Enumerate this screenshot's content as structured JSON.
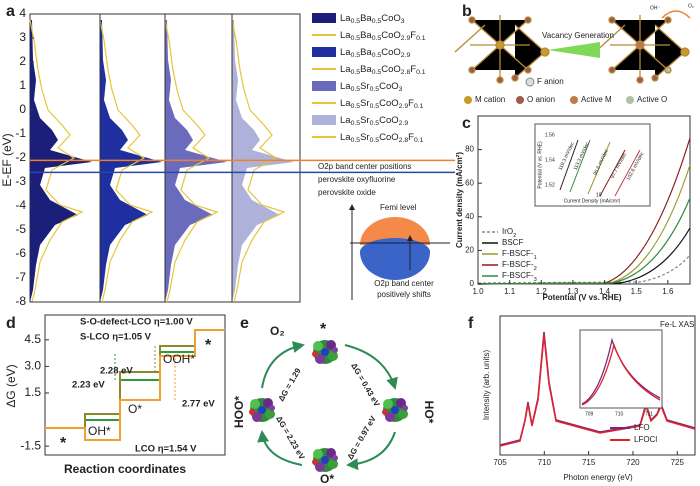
{
  "panel_a": {
    "label": "a",
    "ylabel": "E-EF (eV)",
    "ylim": [
      -8,
      4
    ],
    "yticks": [
      4,
      3,
      2,
      1,
      0,
      -1,
      -2,
      -3,
      -4,
      -5,
      -6,
      -7,
      -8
    ],
    "legend": [
      {
        "name": "La0.5Ba0.5CoO3",
        "color": "#1b1f7a",
        "style": "fill"
      },
      {
        "name": "La0.5Ba0.5CoO2.9F0.1",
        "color": "#e6c53a",
        "style": "line"
      },
      {
        "name": "La0.5Ba0.5CoO2.9",
        "color": "#1f2fa0",
        "style": "fill"
      },
      {
        "name": "La0.5Ba0.5CoO2.8F0.1",
        "color": "#e6c53a",
        "style": "line"
      },
      {
        "name": "La0.5Sr0.5CoO3",
        "color": "#6b6bbd",
        "style": "fill"
      },
      {
        "name": "La0.5Sr0.5CoO2.9F0.1",
        "color": "#e6c53a",
        "style": "line"
      },
      {
        "name": "La0.5Sr0.5CoO2.9",
        "color": "#aeb2da",
        "style": "fill"
      },
      {
        "name": "La0.5Sr0.5CoO2.8F0.1",
        "color": "#e6c53a",
        "style": "line"
      }
    ],
    "band_center_title": "O2p band center positions",
    "oxyfluorine": {
      "text": "perovskite oxyfluorine",
      "color": "#f07f2c",
      "level": -2.1
    },
    "oxide": {
      "text": "perovskite oxide",
      "color": "#2a47a6",
      "level": -2.6
    },
    "femi": "Femi level",
    "shift_line1": "O2p band center",
    "shift_line2": "positively shifts"
  },
  "panel_b": {
    "label": "b",
    "vacancy": "Vacancy Generation",
    "f_anion": "F anion",
    "oh": "OH⁻",
    "o2": "O₂",
    "legend": [
      "M cation",
      "O anion",
      "Active M",
      "Active O"
    ]
  },
  "panel_c": {
    "label": "c",
    "ylabel": "Current density (mA/cm²)",
    "xlabel": "Potential (V vs. RHE)",
    "xlim": [
      1.0,
      1.67
    ],
    "ylim": [
      0,
      100
    ],
    "xticks": [
      {
        "value": 1.0,
        "label": "1.0"
      },
      1.1,
      1.2,
      1.3,
      1.4,
      1.5,
      1.6
    ],
    "yticks": [
      0,
      20,
      40,
      60,
      80
    ],
    "legend": [
      {
        "name": "IrO2",
        "color": "#888888"
      },
      {
        "name": "BSCF",
        "color": "#111111"
      },
      {
        "name": "F-BSCF-1",
        "color": "#9a9a2a"
      },
      {
        "name": "F-BSCF-2",
        "color": "#8b1a1a"
      },
      {
        "name": "F-BSCF-3",
        "color": "#2e8b3a"
      }
    ],
    "inset": {
      "ylabel": "Potential (V vs. RHE)",
      "xlabel": "Current Density (mA/cm²)",
      "yticks": [
        "1.56",
        "1.54",
        "1.52"
      ],
      "xtick": "10",
      "slopes": [
        "119.3 mV/dec",
        "113.3 mV/dec",
        "95.6 mV/dec",
        "97.7 mV/dec",
        "102.6 mV/dec"
      ]
    }
  },
  "panel_d": {
    "label": "d",
    "ylabel": "ΔG (eV)",
    "xlabel": "Reaction coordinates",
    "ylim": [
      -2,
      5.9
    ],
    "yticks": [
      {
        "value": 4.5,
        "label": "4.5"
      },
      {
        "value": 3,
        "label": "3.0"
      },
      1.5,
      -1.5
    ],
    "s_o_defect": "S-O-defect-LCO  η=1.00 V",
    "s_lco": "S-LCO η=1.05 V",
    "lco": "LCO η=1.54 V",
    "gap_green": "2.23 eV",
    "gap_olive": "2.28 eV",
    "gap_orange": "2.77 eV",
    "ooh": "OOH*",
    "o": "O*",
    "oh": "OH*",
    "star_top": "*",
    "star_bottom": "*"
  },
  "panel_e": {
    "label": "e",
    "o2": "O₂",
    "star": "*",
    "oh": "HO*",
    "hoo": "HOO*",
    "o": "O*",
    "dg1": "ΔG = 1.29",
    "dg2": "ΔG = 0.43 eV",
    "dg3": "ΔG = 0.97 eV",
    "dg4": "ΔG = 2.23 eV"
  },
  "panel_f": {
    "label": "f",
    "title": "Fe-L XAS",
    "xlabel": "Photon energy (eV)",
    "ylabel": "Intensity (arb. units)",
    "xlim": [
      705,
      727
    ],
    "xticks": [
      705,
      710,
      715,
      720,
      725
    ],
    "legend": [
      {
        "name": "LFO",
        "color": "#7b2a7b"
      },
      {
        "name": "LFOCl",
        "color": "#e0202a"
      }
    ],
    "inset_xticks": [
      "709",
      "710",
      "711"
    ]
  }
}
